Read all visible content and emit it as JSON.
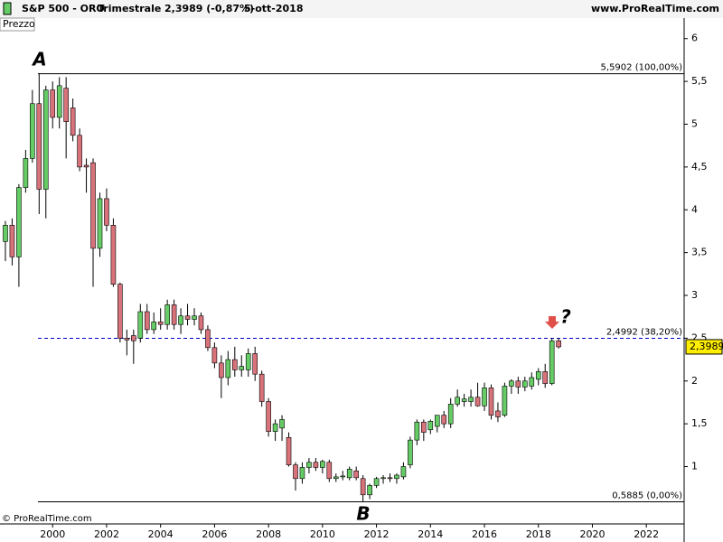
{
  "chart_data": {
    "type": "candlestick",
    "title": "S&P 500 - ORO",
    "timeframe": "Trimestrale",
    "quote": "2,3989 (-0,87%)",
    "date": "5-ott-2018",
    "source": "www.ProRealTime.com",
    "panel_label": "Prezzo",
    "copyright": "© ProRealTime.com",
    "x": [
      1998.25,
      1998.5,
      1998.75,
      1999,
      1999.25,
      1999.5,
      1999.75,
      2000,
      2000.25,
      2000.5,
      2000.75,
      2001,
      2001.25,
      2001.5,
      2001.75,
      2002,
      2002.25,
      2002.5,
      2002.75,
      2003,
      2003.25,
      2003.5,
      2003.75,
      2004,
      2004.25,
      2004.5,
      2004.75,
      2005,
      2005.25,
      2005.5,
      2005.75,
      2006,
      2006.25,
      2006.5,
      2006.75,
      2007,
      2007.25,
      2007.5,
      2007.75,
      2008,
      2008.25,
      2008.5,
      2008.75,
      2009,
      2009.25,
      2009.5,
      2009.75,
      2010,
      2010.25,
      2010.5,
      2010.75,
      2011,
      2011.25,
      2011.5,
      2011.75,
      2012,
      2012.25,
      2012.5,
      2012.75,
      2013,
      2013.25,
      2013.5,
      2013.75,
      2014,
      2014.25,
      2014.5,
      2014.75,
      2015,
      2015.25,
      2015.5,
      2015.75,
      2016,
      2016.25,
      2016.5,
      2016.75,
      2017,
      2017.25,
      2017.5,
      2017.75,
      2018,
      2018.25,
      2018.5,
      2018.75
    ],
    "open": [
      3.63,
      3.82,
      3.45,
      4.26,
      4.6,
      5.24,
      4.24,
      5.4,
      5.08,
      5.42,
      5.19,
      4.87,
      4.52,
      4.55,
      3.55,
      4.13,
      3.82,
      3.13,
      2.5,
      2.53,
      2.5,
      2.81,
      2.6,
      2.69,
      2.66,
      2.89,
      2.66,
      2.76,
      2.72,
      2.76,
      2.6,
      2.39,
      2.21,
      2.04,
      2.25,
      2.13,
      2.13,
      2.32,
      2.08,
      1.76,
      1.41,
      1.45,
      1.34,
      1.02,
      0.86,
      0.99,
      1.05,
      0.99,
      1.05,
      0.86,
      0.88,
      0.87,
      0.95,
      0.86,
      0.67,
      0.78,
      0.86,
      0.87,
      0.86,
      0.88,
      1.02,
      1.31,
      1.52,
      1.43,
      1.47,
      1.6,
      1.5,
      1.73,
      1.76,
      1.76,
      1.81,
      1.71,
      1.92,
      1.65,
      1.6,
      1.94,
      2,
      1.93,
      1.94,
      2.02,
      2.11,
      1.97,
      2.47
    ],
    "high": [
      3.87,
      3.9,
      4.3,
      4.7,
      5.4,
      5.59,
      5.45,
      5.5,
      5.55,
      5.55,
      5.3,
      4.95,
      4.6,
      4.6,
      4.2,
      4.25,
      3.9,
      3.15,
      2.6,
      2.6,
      2.9,
      2.9,
      2.8,
      2.85,
      2.95,
      2.95,
      2.85,
      2.9,
      2.85,
      2.8,
      2.65,
      2.45,
      2.3,
      2.35,
      2.4,
      2.3,
      2.38,
      2.4,
      2.12,
      1.8,
      1.55,
      1.6,
      1.4,
      1.05,
      1.05,
      1.1,
      1.1,
      1.08,
      1.08,
      0.92,
      0.95,
      1,
      1,
      0.9,
      0.8,
      0.88,
      0.9,
      0.92,
      0.92,
      1.05,
      1.35,
      1.55,
      1.55,
      1.55,
      1.6,
      1.65,
      1.8,
      1.9,
      1.85,
      1.9,
      1.98,
      1.98,
      1.96,
      1.75,
      1.98,
      2.02,
      2.05,
      2.05,
      2.1,
      2.15,
      2.2,
      2.5,
      2.5
    ],
    "low": [
      3.4,
      3.35,
      3.1,
      4.2,
      4.55,
      3.95,
      3.9,
      4.95,
      4.95,
      4.6,
      4.8,
      4.45,
      4.2,
      3.1,
      3.45,
      3.75,
      3.1,
      2.45,
      2.3,
      2.2,
      2.45,
      2.55,
      2.55,
      2.6,
      2.6,
      2.6,
      2.55,
      2.65,
      2.65,
      2.55,
      2.35,
      2.15,
      1.8,
      1.95,
      2.05,
      2.05,
      2.05,
      2,
      1.7,
      1.35,
      1.3,
      1.3,
      1,
      0.72,
      0.8,
      0.92,
      0.95,
      0.92,
      0.82,
      0.82,
      0.84,
      0.84,
      0.84,
      0.59,
      0.62,
      0.75,
      0.8,
      0.82,
      0.8,
      0.85,
      0.98,
      1.25,
      1.3,
      1.38,
      1.4,
      1.45,
      1.45,
      1.7,
      1.7,
      1.7,
      1.7,
      1.65,
      1.55,
      1.52,
      1.58,
      1.85,
      1.85,
      1.88,
      1.9,
      1.95,
      1.92,
      1.95,
      2.38
    ],
    "close": [
      3.82,
      3.45,
      4.26,
      4.6,
      5.24,
      4.24,
      5.4,
      5.08,
      5.45,
      5.03,
      4.87,
      4.5,
      4.5,
      3.55,
      4.13,
      3.82,
      3.13,
      2.5,
      2.48,
      2.47,
      2.81,
      2.6,
      2.69,
      2.66,
      2.89,
      2.66,
      2.76,
      2.72,
      2.76,
      2.6,
      2.39,
      2.21,
      2.04,
      2.25,
      2.13,
      2.17,
      2.32,
      2.08,
      1.76,
      1.41,
      1.5,
      1.55,
      1.02,
      0.86,
      0.99,
      1.05,
      0.99,
      1.06,
      0.86,
      0.88,
      0.89,
      0.97,
      0.87,
      0.67,
      0.78,
      0.86,
      0.87,
      0.86,
      0.9,
      1,
      1.31,
      1.52,
      1.4,
      1.53,
      1.6,
      1.5,
      1.73,
      1.81,
      1.79,
      1.81,
      1.71,
      1.92,
      1.6,
      1.58,
      1.94,
      2,
      1.93,
      2,
      2.04,
      2.11,
      1.97,
      2.47,
      2.3989
    ],
    "up_color": "#66cc66",
    "down_color": "#d9737b",
    "xlim": [
      1998.05,
      2023.4
    ],
    "xticks": [
      2000,
      2002,
      2004,
      2006,
      2008,
      2010,
      2012,
      2014,
      2016,
      2018,
      2020,
      2022
    ],
    "ylim": [
      0.33,
      6.24
    ],
    "yticks": [
      {
        "value": 1,
        "label": "1"
      },
      {
        "value": 1.5,
        "label": "1,5"
      },
      {
        "value": 2,
        "label": "2"
      },
      {
        "value": 2.5,
        "label": "2,5"
      },
      {
        "value": 3,
        "label": "3"
      },
      {
        "value": 3.5,
        "label": "3,5"
      },
      {
        "value": 4,
        "label": "4"
      },
      {
        "value": 4.5,
        "label": "4,5"
      },
      {
        "value": 5,
        "label": "5"
      },
      {
        "value": 5.5,
        "label": "5,5"
      },
      {
        "value": 6,
        "label": "6"
      }
    ],
    "levels": [
      {
        "value": 5.5902,
        "label": "5,5902 (100,00%)",
        "color": "#000000",
        "dashed": false
      },
      {
        "value": 2.4992,
        "label": "2,4992 (38,20%)",
        "color": "#0000cc",
        "dashed": true
      },
      {
        "value": 0.5885,
        "label": "0,5885 (0,00%)",
        "color": "#000000",
        "dashed": false
      }
    ],
    "last_price": {
      "value": 2.3989,
      "label": "2,3989"
    },
    "annotations": [
      "A",
      "B",
      "?"
    ]
  }
}
